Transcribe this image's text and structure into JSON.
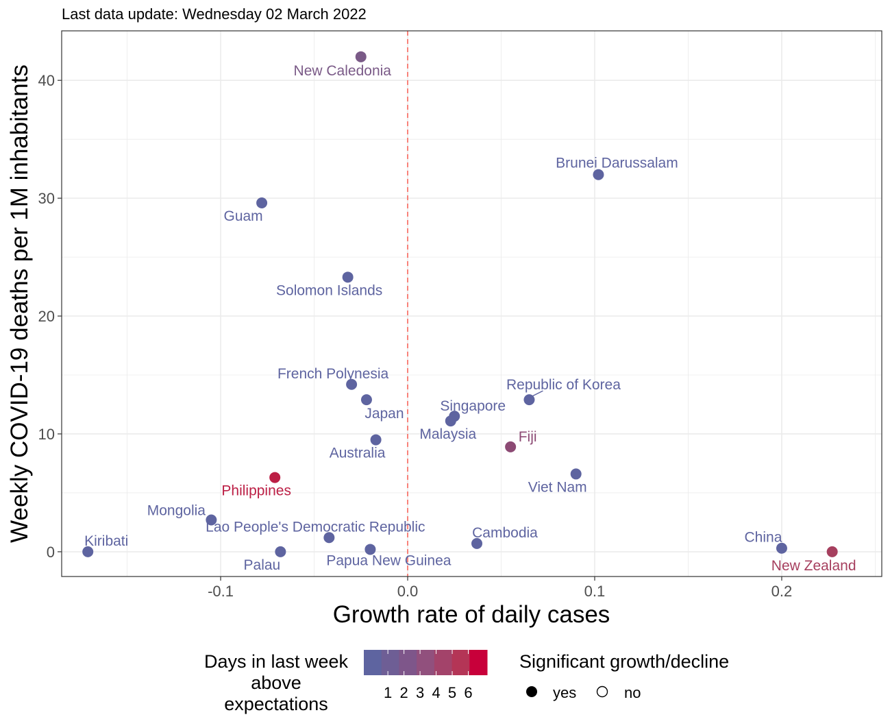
{
  "chart_data": {
    "type": "scatter",
    "title": "Last data update: Wednesday 02 March 2022",
    "xlabel": "Growth rate of daily cases",
    "ylabel": "Weekly COVID-19 deaths per 1M inhabitants",
    "xlim": [
      -0.185,
      0.2535
    ],
    "ylim": [
      -2.1,
      44.2
    ],
    "x_ticks": [
      -0.1,
      0.0,
      0.1,
      0.2
    ],
    "x_tick_labels": [
      "-0.1",
      "0.0",
      "0.1",
      "0.2"
    ],
    "y_ticks": [
      0,
      10,
      20,
      30,
      40
    ],
    "y_tick_labels": [
      "0",
      "10",
      "20",
      "30",
      "40"
    ],
    "grid": true,
    "reference_line": {
      "x": 0,
      "style": "dashed",
      "color": "#f8766d"
    },
    "points": [
      {
        "label": "New Caledonia",
        "x": -0.025,
        "y": 42.0,
        "days": 2,
        "color": "#7a5a87"
      },
      {
        "label": "Brunei Darussalam",
        "x": 0.102,
        "y": 32.0,
        "days": 1,
        "color": "#5e64a0"
      },
      {
        "label": "Guam",
        "x": -0.078,
        "y": 29.6,
        "days": 1,
        "color": "#5e64a0"
      },
      {
        "label": "Solomon Islands",
        "x": -0.032,
        "y": 23.3,
        "days": 1,
        "color": "#5e64a0"
      },
      {
        "label": "French Polynesia",
        "x": -0.03,
        "y": 14.2,
        "days": 1,
        "color": "#5e64a0"
      },
      {
        "label": "Japan",
        "x": -0.022,
        "y": 12.9,
        "days": 1,
        "color": "#5e64a0"
      },
      {
        "label": "Republic of Korea",
        "x": 0.065,
        "y": 12.9,
        "days": 1,
        "color": "#5e64a0"
      },
      {
        "label": "Singapore",
        "x": 0.025,
        "y": 11.5,
        "days": 1,
        "color": "#5e64a0"
      },
      {
        "label": "Malaysia",
        "x": 0.023,
        "y": 11.1,
        "days": 1,
        "color": "#5e64a0"
      },
      {
        "label": "Australia",
        "x": -0.017,
        "y": 9.5,
        "days": 1,
        "color": "#5e64a0"
      },
      {
        "label": "Fiji",
        "x": 0.055,
        "y": 8.9,
        "days": 3,
        "color": "#8c4a74"
      },
      {
        "label": "Viet Nam",
        "x": 0.09,
        "y": 6.6,
        "days": 1,
        "color": "#5e64a0"
      },
      {
        "label": "Philippines",
        "x": -0.071,
        "y": 6.3,
        "days": 6,
        "color": "#bc1f45"
      },
      {
        "label": "Mongolia",
        "x": -0.105,
        "y": 2.7,
        "days": 1,
        "color": "#5e64a0"
      },
      {
        "label": "Lao People's Democratic Republic",
        "x": -0.042,
        "y": 1.2,
        "days": 1,
        "color": "#5e64a0"
      },
      {
        "label": "Cambodia",
        "x": 0.037,
        "y": 0.7,
        "days": 1,
        "color": "#5e64a0"
      },
      {
        "label": "Kiribati",
        "x": -0.171,
        "y": 0.0,
        "days": 1,
        "color": "#5e64a0"
      },
      {
        "label": "Palau",
        "x": -0.068,
        "y": 0.0,
        "days": 1,
        "color": "#5e64a0"
      },
      {
        "label": "Papua New Guinea",
        "x": -0.02,
        "y": 0.2,
        "days": 1,
        "color": "#5e64a0"
      },
      {
        "label": "China",
        "x": 0.2,
        "y": 0.3,
        "days": 1,
        "color": "#5e64a0"
      },
      {
        "label": "New Zealand",
        "x": 0.227,
        "y": 0.0,
        "days": 4,
        "color": "#a63f5e"
      }
    ],
    "legend_color": {
      "title": "Days in last week above expectations",
      "title_lines": [
        "Days in last week",
        "above",
        "expectations"
      ],
      "labels": [
        "1",
        "2",
        "3",
        "4",
        "5",
        "6"
      ],
      "colors": [
        "#5e64a0",
        "#6e5e95",
        "#7e568a",
        "#91507d",
        "#a3436a",
        "#b43556",
        "#c8003a"
      ]
    },
    "legend_shape": {
      "title": "Significant growth/decline",
      "items": [
        "yes",
        "no"
      ]
    }
  }
}
